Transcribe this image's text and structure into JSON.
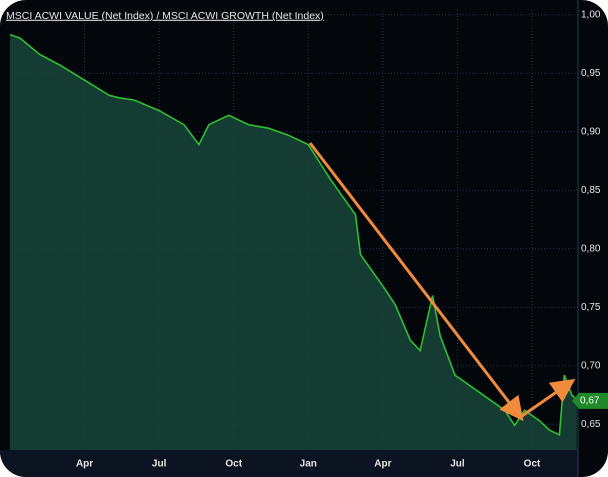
{
  "chart_data": {
    "type": "line",
    "title": "MSCI ACWI VALUE (Net Index) / MSCI ACWI GROWTH (Net Index)",
    "x": [
      0,
      0.4,
      1.2,
      2,
      3,
      4,
      4.4,
      5,
      6,
      7,
      7.6,
      8,
      8.8,
      9.6,
      10.4,
      11.2,
      12,
      12.9,
      13.9,
      14.1,
      14.7,
      15.1,
      15.5,
      16.1,
      16.5,
      17,
      17.3,
      17.9,
      18.5,
      19.3,
      19.9,
      20.3,
      20.7,
      21.3,
      21.7,
      22.1,
      22.3,
      22.6,
      22.8
    ],
    "series": [
      {
        "name": "MSCI ACWI VALUE (Net Index) / MSCI ACWI GROWTH (Net Index)",
        "color": "#2fbf2f",
        "values": [
          0.983,
          0.98,
          0.966,
          0.957,
          0.944,
          0.931,
          0.929,
          0.927,
          0.918,
          0.906,
          0.889,
          0.906,
          0.914,
          0.906,
          0.903,
          0.897,
          0.889,
          0.859,
          0.829,
          0.795,
          0.777,
          0.765,
          0.752,
          0.722,
          0.713,
          0.76,
          0.726,
          0.692,
          0.683,
          0.671,
          0.662,
          0.649,
          0.662,
          0.653,
          0.645,
          0.641,
          0.692,
          0.675,
          0.671
        ]
      }
    ],
    "xlim": [
      0,
      22.85
    ],
    "xticks": [
      {
        "value": 3,
        "label": "Apr"
      },
      {
        "value": 6,
        "label": "Jul"
      },
      {
        "value": 9,
        "label": "Oct"
      },
      {
        "value": 12,
        "label": "Jan"
      },
      {
        "value": 15,
        "label": "Apr"
      },
      {
        "value": 18,
        "label": "Jul"
      },
      {
        "value": 21,
        "label": "Oct"
      }
    ],
    "ylim": [
      0.628,
      1.004
    ],
    "yticks": [
      {
        "value": 0.65,
        "label": "0,65"
      },
      {
        "value": 0.7,
        "label": "0,70"
      },
      {
        "value": 0.75,
        "label": "0,75"
      },
      {
        "value": 0.8,
        "label": "0,80"
      },
      {
        "value": 0.85,
        "label": "0,85"
      },
      {
        "value": 0.9,
        "label": "0,90"
      },
      {
        "value": 0.95,
        "label": "0,95"
      },
      {
        "value": 1.0,
        "label": "1,00"
      }
    ],
    "annotations": [
      {
        "value": 0.67,
        "label": "0,67"
      }
    ],
    "grid": true
  }
}
